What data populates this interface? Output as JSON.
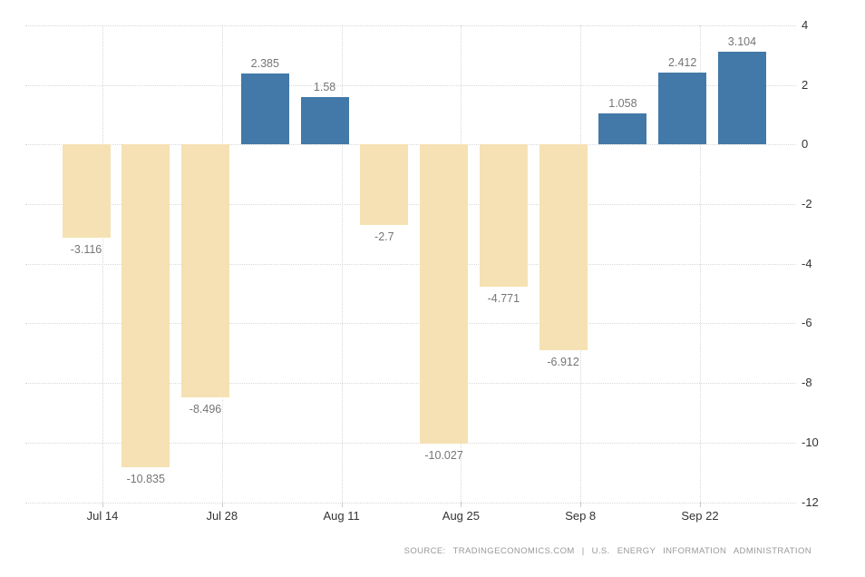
{
  "chart_data": {
    "type": "bar",
    "title": "",
    "values": [
      -3.116,
      -10.835,
      -8.496,
      2.385,
      1.58,
      -2.7,
      -10.027,
      -4.771,
      -6.912,
      1.058,
      2.412,
      3.104
    ],
    "value_labels": [
      "-3.116",
      "-10.835",
      "-8.496",
      "2.385",
      "1.58",
      "-2.7",
      "-10.027",
      "-4.771",
      "-6.912",
      "1.058",
      "2.412",
      "3.104"
    ],
    "x_tick_labels": [
      "Jul 14",
      "Jul 28",
      "Aug 11",
      "Aug 25",
      "Sep 8",
      "Sep 22"
    ],
    "y_tick_labels": [
      "4",
      "2",
      "0",
      "-2",
      "-4",
      "-6",
      "-8",
      "-10",
      "-12"
    ],
    "ylim": [
      -12,
      4
    ],
    "y_tick_step": 2,
    "grid": true,
    "legend": "none",
    "y_axis_position": "right",
    "positive_color": "#4379A8",
    "negative_color": "#F5E1B3",
    "gridline_color": "#d8d8d8",
    "axis_label_color": "#333333",
    "value_label_color": "#757575"
  },
  "footer": {
    "source_text": "SOURCE: TRADINGECONOMICS.COM | U.S. ENERGY INFORMATION ADMINISTRATION"
  }
}
